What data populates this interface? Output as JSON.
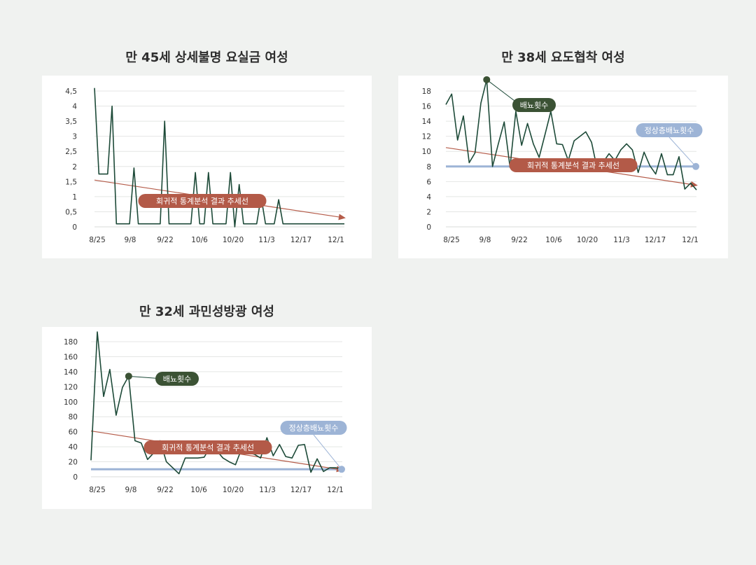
{
  "chart_data": [
    {
      "type": "line",
      "title": "만 45세 상세불명 요실금 여성",
      "x_ticks": [
        "8/25",
        "9/8",
        "9/22",
        "10/6",
        "10/20",
        "11/3",
        "12/17",
        "12/1"
      ],
      "y_ticks": [
        "0",
        "0,5",
        "1",
        "1,5",
        "2",
        "2,5",
        "3",
        "3,5",
        "4",
        "4,5"
      ],
      "ylim": [
        0,
        4.5
      ],
      "grid": true,
      "series": [
        {
          "values": [
            4.6,
            1.75,
            1.75,
            1.75,
            4,
            0.1,
            0.1,
            0.1,
            0.1,
            1.95,
            0.1,
            0.1,
            0.1,
            0.1,
            0.1,
            0.1,
            3.5,
            0.1,
            0.1,
            0.1,
            0.1,
            0.1,
            0.1,
            1.8,
            0.1,
            0.1,
            1.8,
            0.1,
            0.1,
            0.1,
            0.1,
            1.8,
            0,
            1.4,
            0.1,
            0.1,
            0.1,
            0.1,
            1,
            0.1,
            0.1,
            0.1,
            0.9,
            0.1,
            0.1,
            0.1,
            0.1,
            0.1,
            0.1,
            0.1,
            0.1,
            0.1,
            0.1,
            0.1,
            0.1,
            0.1,
            0.1,
            0.1
          ]
        }
      ],
      "trend": {
        "from": 1.55,
        "to": 0.32
      },
      "annotations": [
        {
          "kind": "trend",
          "text": "회귀적 통계분석 결과 추세선"
        }
      ]
    },
    {
      "type": "line",
      "title": "만 38세 요도협착 여성",
      "x_ticks": [
        "8/25",
        "9/8",
        "9/22",
        "10/6",
        "10/20",
        "11/3",
        "12/17",
        "12/1"
      ],
      "y_ticks": [
        "0",
        "2",
        "4",
        "6",
        "8",
        "10",
        "12",
        "14",
        "16",
        "18"
      ],
      "ylim": [
        0,
        18
      ],
      "grid": true,
      "series": [
        {
          "values": [
            16.2,
            17.6,
            11.5,
            14.7,
            8.5,
            9.8,
            16.4,
            19.5,
            8,
            11,
            13.9,
            7.9,
            15.3,
            10.8,
            13.7,
            11,
            9.2,
            12.2,
            15.3,
            11,
            10.9,
            8.8,
            11.4,
            12,
            12.6,
            11.2,
            7.5,
            8.6,
            9.7,
            8.8,
            10.2,
            11,
            10.2,
            7.2,
            9.9,
            8.1,
            7,
            9.7,
            6.9,
            6.9,
            9.3,
            5,
            5.8,
            4.9
          ]
        }
      ],
      "normal": {
        "value": 8
      },
      "trend": {
        "from": 10.5,
        "to": 5.6
      },
      "annotations": [
        {
          "kind": "series",
          "text": "배뇨횟수",
          "point_index": 7
        },
        {
          "kind": "normal",
          "text": "정상층배뇨횟수"
        },
        {
          "kind": "trend",
          "text": "회귀적 통계분석 결과 추세선"
        }
      ]
    },
    {
      "type": "line",
      "title": "만 32세 과민성방광 여성",
      "x_ticks": [
        "8/25",
        "9/8",
        "9/22",
        "10/6",
        "10/20",
        "11/3",
        "12/17",
        "12/1"
      ],
      "y_ticks": [
        "0",
        "20",
        "40",
        "60",
        "80",
        "100",
        "120",
        "140",
        "160",
        "180"
      ],
      "ylim": [
        0,
        180
      ],
      "grid": true,
      "series": [
        {
          "values": [
            22,
            193,
            107,
            143,
            82,
            119,
            134,
            48,
            45,
            23,
            32,
            48,
            20,
            12,
            4,
            25,
            25,
            25,
            26,
            40,
            35,
            25,
            20,
            16,
            38,
            32,
            30,
            25,
            52,
            28,
            43,
            27,
            25,
            42,
            43,
            6,
            24,
            7,
            12,
            12,
            10
          ]
        }
      ],
      "normal": {
        "value": 10
      },
      "trend": {
        "from": 61,
        "to": 10
      },
      "annotations": [
        {
          "kind": "series",
          "text": "배뇨횟수",
          "point_index": 6
        },
        {
          "kind": "normal",
          "text": "정상층배뇨횟수"
        },
        {
          "kind": "trend",
          "text": "회귀적 통계분석 결과 추세선"
        }
      ]
    }
  ],
  "colors": {
    "series": "#1d4a38",
    "trend": "#b55c4a",
    "trend_label_bg": "#b35a48",
    "normal": "#9db4d6",
    "normal_label_bg": "#9db4d6",
    "series_label_bg": "#3b5234",
    "grid": "#e4e6e4",
    "tick_text": "#333333"
  }
}
